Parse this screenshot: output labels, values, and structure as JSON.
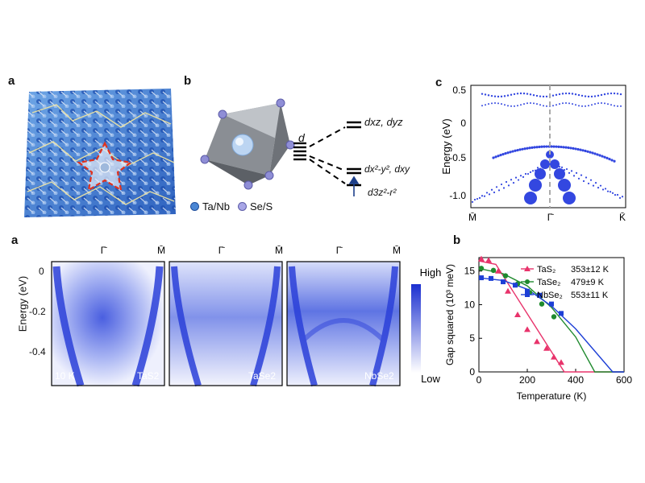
{
  "panels": {
    "top_a": {
      "label": "a"
    },
    "top_b": {
      "label": "b",
      "legend": [
        "Ta/Nb",
        "Se/S"
      ],
      "d_label": "d",
      "level_upper": "dxz, dyz",
      "level_mid": "dx²-y², dxy",
      "level_low": "d3z²-r²"
    },
    "top_c": {
      "label": "c",
      "ylabel": "Energy (eV)",
      "yticks": [
        "0.5",
        "0",
        "-0.5",
        "-1.0"
      ],
      "xticks": [
        "M̄",
        "Γ̄",
        "K̄"
      ]
    },
    "bottom_a": {
      "label": "a",
      "ylabel": "Energy (eV)",
      "yticks": [
        "0",
        "-0.2",
        "-0.4"
      ],
      "top_labels": [
        "Γ̄",
        "M̄"
      ],
      "subpanels": [
        {
          "temp": "10 K",
          "material": "TaS2"
        },
        {
          "temp": "",
          "material": "TaSe2"
        },
        {
          "temp": "",
          "material": "NbSe2"
        }
      ],
      "colorbar": {
        "high": "High",
        "low": "Low"
      }
    }
  },
  "chart_data": {
    "type": "scatter",
    "title": "",
    "label": "b",
    "xlabel": "Temperature (K)",
    "ylabel": "Gap squared (10³ meV)",
    "xlim": [
      0,
      600
    ],
    "ylim": [
      0,
      17
    ],
    "xticks": [
      "0",
      "200",
      "400",
      "600"
    ],
    "yticks": [
      "0",
      "5",
      "10",
      "15"
    ],
    "legend_position": "top-right",
    "series": [
      {
        "name": "TaS₂",
        "note": "353±12 K",
        "color": "#e8336b",
        "marker": "triangle",
        "x": [
          10,
          40,
          80,
          120,
          160,
          200,
          240,
          280,
          310,
          340
        ],
        "y": [
          16.8,
          16.6,
          15.0,
          12.0,
          8.5,
          6.3,
          4.5,
          3.5,
          2.2,
          1.4
        ],
        "fit_x": [
          0,
          70,
          353,
          600
        ],
        "fit_y": [
          16.5,
          16.0,
          0,
          0
        ]
      },
      {
        "name": "TaSe₂",
        "note": "479±9 K",
        "color": "#1f8a2e",
        "marker": "circle",
        "x": [
          10,
          60,
          110,
          160,
          210,
          260,
          310
        ],
        "y": [
          15.4,
          15.1,
          14.3,
          13.1,
          11.8,
          10.1,
          8.2
        ],
        "fit_x": [
          0,
          100,
          200,
          300,
          400,
          479,
          600
        ],
        "fit_y": [
          15.4,
          14.6,
          12.8,
          9.6,
          5.2,
          0,
          0
        ]
      },
      {
        "name": "NbSe₂",
        "note": "553±11 K",
        "color": "#1d3fd6",
        "marker": "square",
        "x": [
          10,
          50,
          100,
          150,
          200,
          250,
          300,
          340
        ],
        "y": [
          14.0,
          13.9,
          13.4,
          12.9,
          12.0,
          11.4,
          10.1,
          8.7
        ],
        "fit_x": [
          0,
          100,
          200,
          300,
          400,
          553,
          600
        ],
        "fit_y": [
          14.0,
          13.6,
          12.3,
          9.8,
          6.4,
          0,
          0
        ]
      }
    ]
  }
}
